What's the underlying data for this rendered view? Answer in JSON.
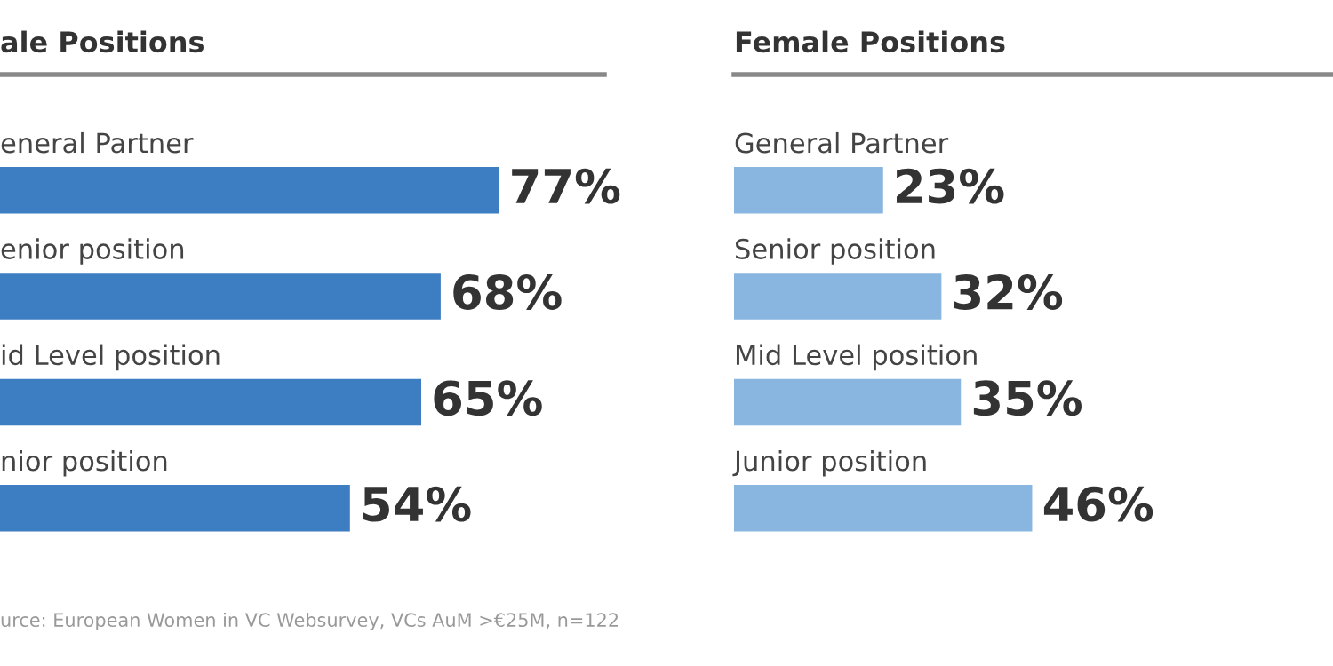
{
  "chart_data": [
    {
      "type": "bar",
      "orientation": "horizontal",
      "title": "ale Positions",
      "categories": [
        "eneral Partner",
        "enior position",
        "id Level position",
        "nior position"
      ],
      "series": [
        {
          "color": "#3d7dc1",
          "values": [
            77,
            68,
            65,
            54
          ],
          "value_labels": [
            "77%",
            "68%",
            "65%",
            "54%"
          ]
        }
      ],
      "annotations": [
        "urce: European Women in VC Websurvey, VCs AuM >€25M, n=122"
      ]
    },
    {
      "type": "bar",
      "orientation": "horizontal",
      "title": "Female Positions",
      "categories": [
        "General Partner",
        "Senior position",
        "Mid Level position",
        "Junior position"
      ],
      "series": [
        {
          "color": "#88b6e0",
          "values": [
            23,
            32,
            35,
            46
          ],
          "value_labels": [
            "23%",
            "32%",
            "35%",
            "46%"
          ]
        }
      ]
    }
  ]
}
